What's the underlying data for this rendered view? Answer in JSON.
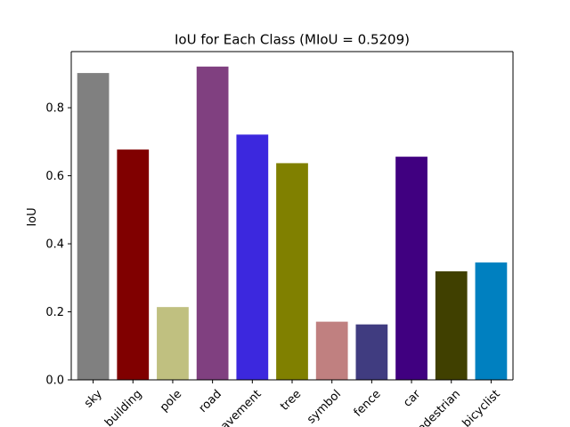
{
  "chart_data": {
    "type": "bar",
    "title": "IoU for Each Class (MIoU = 0.5209)",
    "xlabel": "",
    "ylabel": "IoU",
    "ylim": [
      0,
      0.965
    ],
    "yticks": [
      "0.0",
      "0.2",
      "0.4",
      "0.6",
      "0.8"
    ],
    "grid": false,
    "categories": [
      "sky",
      "building",
      "pole",
      "road",
      "pavement",
      "tree",
      "symbol",
      "fence",
      "car",
      "pedestrian",
      "bicyclist"
    ],
    "values": [
      0.902,
      0.677,
      0.214,
      0.921,
      0.721,
      0.637,
      0.171,
      0.163,
      0.656,
      0.319,
      0.345
    ],
    "colors": [
      "#808080",
      "#800000",
      "#c0c080",
      "#804080",
      "#3c28de",
      "#808000",
      "#c08080",
      "#403c80",
      "#400080",
      "#404000",
      "#0080c0"
    ]
  }
}
